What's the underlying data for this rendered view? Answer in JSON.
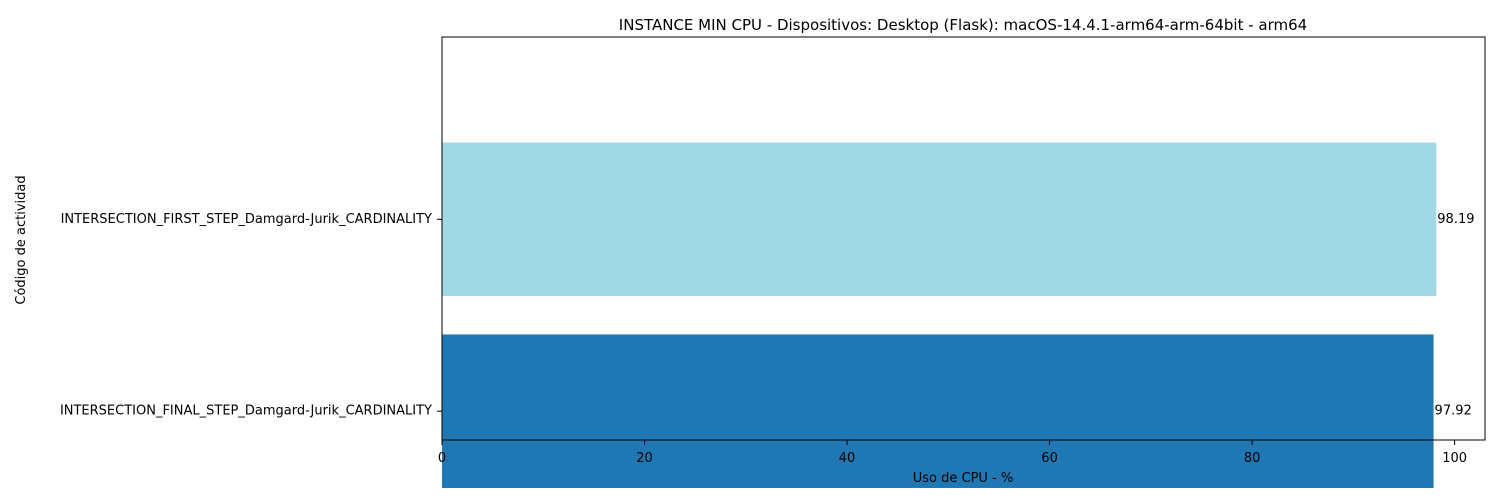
{
  "chart_data": {
    "type": "bar",
    "orientation": "horizontal",
    "title": "INSTANCE MIN CPU - Dispositivos: Desktop (Flask): macOS-14.4.1-arm64-arm-64bit - arm64",
    "xlabel": "Uso de CPU - %",
    "ylabel": "Código de actividad",
    "xlim": [
      0,
      103
    ],
    "xticks": [
      "0",
      "20",
      "40",
      "60",
      "80",
      "100"
    ],
    "categories": [
      "INTERSECTION_FIRST_STEP_Damgard-Jurik_CARDINALITY",
      "INTERSECTION_FINAL_STEP_Damgard-Jurik_CARDINALITY"
    ],
    "values": [
      98.19,
      97.92
    ],
    "value_labels": [
      "98.19",
      "97.92"
    ],
    "colors": [
      "#9fdae4",
      "#1f77b4"
    ],
    "grid": false,
    "legend": "none"
  }
}
